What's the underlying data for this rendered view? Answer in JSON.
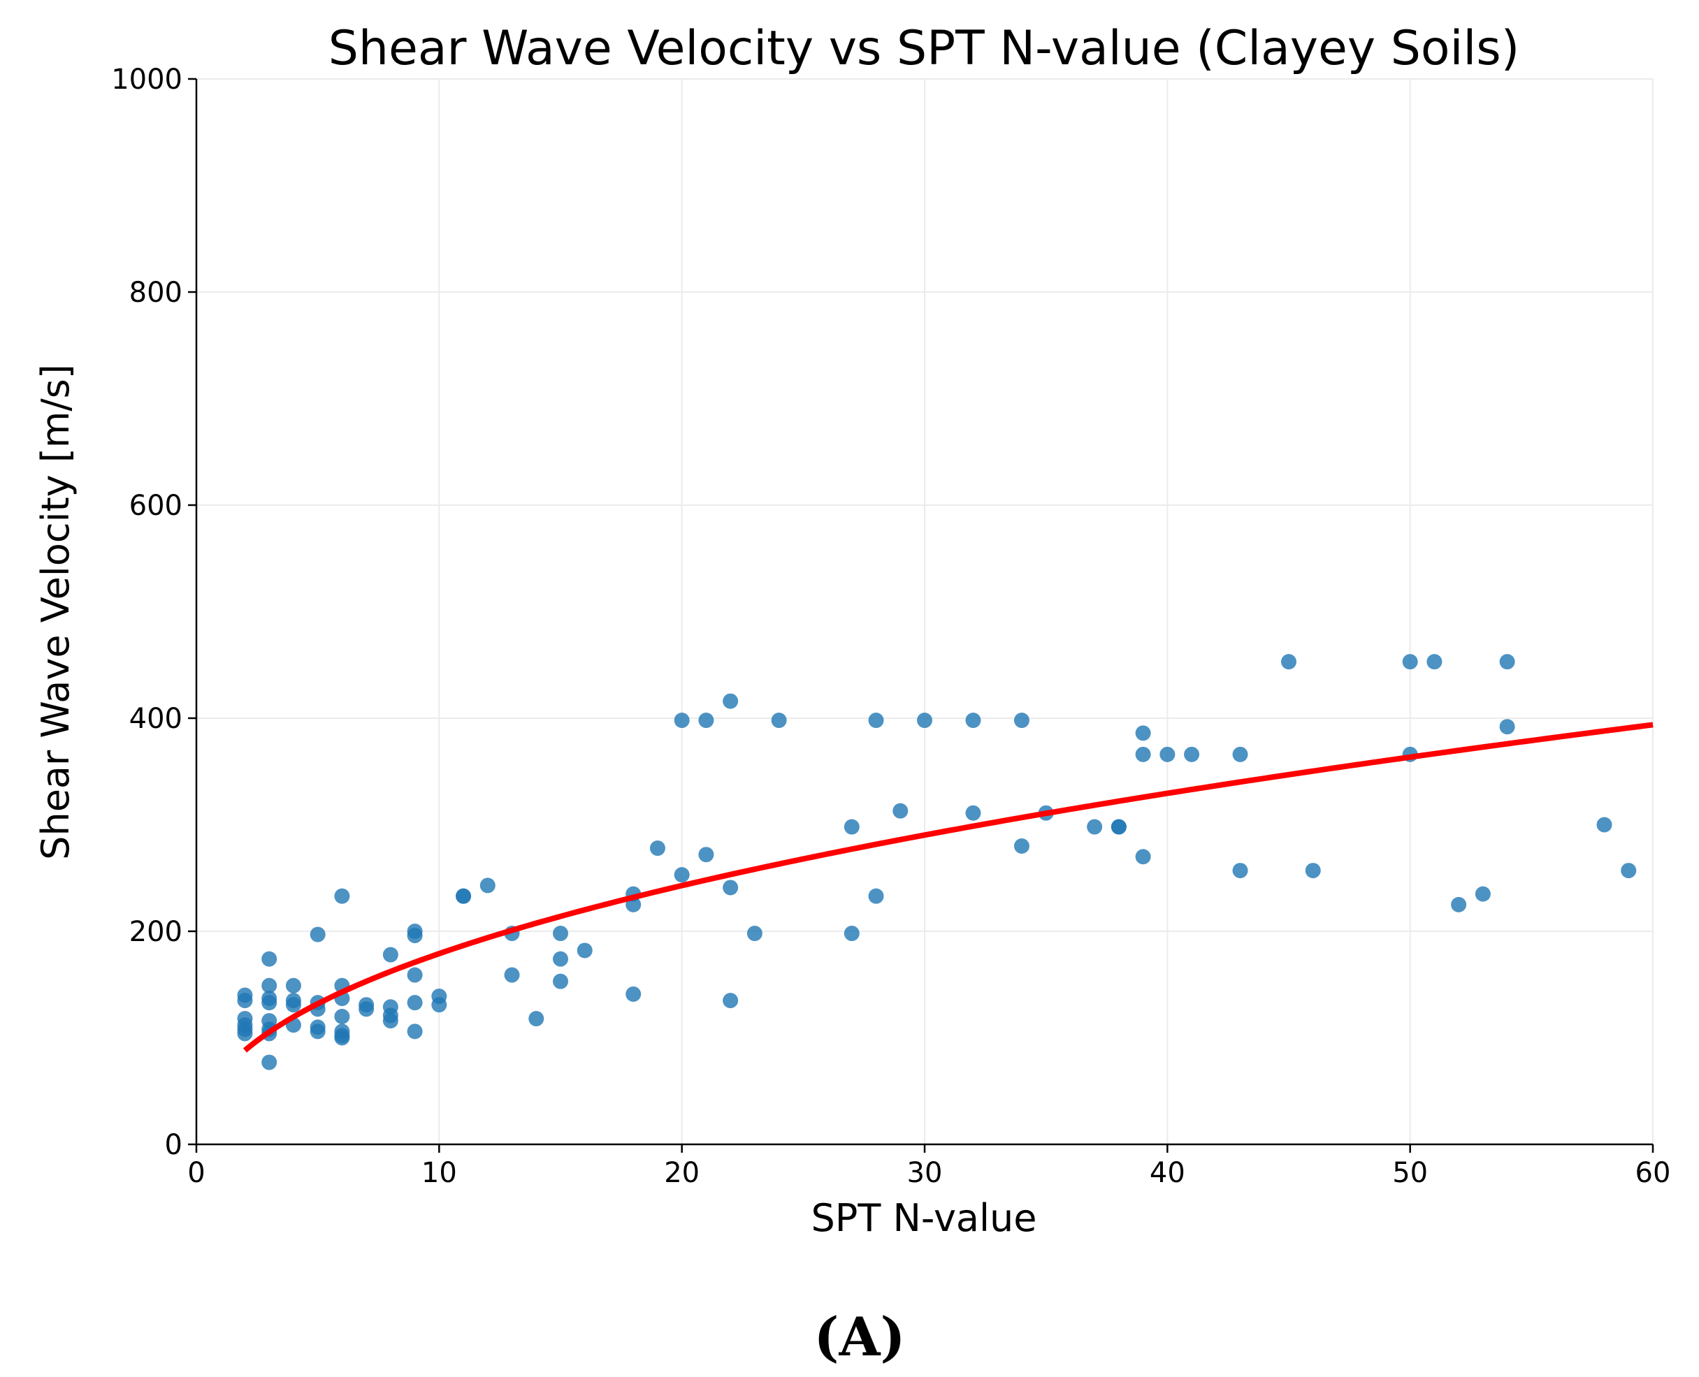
{
  "chart_data": {
    "type": "scatter",
    "title": "Shear Wave Velocity vs SPT N-value (Clayey Soils)",
    "xlabel": "SPT N-value",
    "ylabel": "Shear Wave Velocity [m/s]",
    "xlim": [
      0,
      60
    ],
    "ylim": [
      0,
      1000
    ],
    "xticks": [
      "0",
      "10",
      "20",
      "30",
      "40",
      "50",
      "60"
    ],
    "yticks": [
      "0",
      "200",
      "400",
      "600",
      "800",
      "1000"
    ],
    "grid": true,
    "colors": {
      "points": "#1f77b4",
      "fit": "#ff0000",
      "grid": "#ebebeb"
    },
    "points": [
      [
        2,
        140
      ],
      [
        2,
        135
      ],
      [
        2,
        118
      ],
      [
        2,
        112
      ],
      [
        2,
        108
      ],
      [
        2,
        104
      ],
      [
        3,
        174
      ],
      [
        3,
        149
      ],
      [
        3,
        137
      ],
      [
        3,
        133
      ],
      [
        3,
        116
      ],
      [
        3,
        108
      ],
      [
        3,
        104
      ],
      [
        3,
        77
      ],
      [
        4,
        149
      ],
      [
        4,
        135
      ],
      [
        4,
        131
      ],
      [
        4,
        112
      ],
      [
        5,
        197
      ],
      [
        5,
        133
      ],
      [
        5,
        127
      ],
      [
        5,
        110
      ],
      [
        5,
        106
      ],
      [
        6,
        233
      ],
      [
        6,
        149
      ],
      [
        6,
        137
      ],
      [
        6,
        120
      ],
      [
        6,
        106
      ],
      [
        6,
        102
      ],
      [
        6,
        100
      ],
      [
        7,
        131
      ],
      [
        7,
        127
      ],
      [
        8,
        178
      ],
      [
        8,
        129
      ],
      [
        8,
        121
      ],
      [
        8,
        116
      ],
      [
        9,
        200
      ],
      [
        9,
        196
      ],
      [
        9,
        159
      ],
      [
        9,
        133
      ],
      [
        9,
        106
      ],
      [
        10,
        139
      ],
      [
        10,
        131
      ],
      [
        11,
        233
      ],
      [
        11,
        233
      ],
      [
        12,
        243
      ],
      [
        13,
        198
      ],
      [
        13,
        159
      ],
      [
        14,
        118
      ],
      [
        15,
        198
      ],
      [
        15,
        174
      ],
      [
        15,
        153
      ],
      [
        16,
        182
      ],
      [
        18,
        235
      ],
      [
        18,
        225
      ],
      [
        18,
        141
      ],
      [
        19,
        278
      ],
      [
        20,
        398
      ],
      [
        20,
        253
      ],
      [
        21,
        398
      ],
      [
        21,
        272
      ],
      [
        22,
        416
      ],
      [
        22,
        241
      ],
      [
        22,
        135
      ],
      [
        23,
        198
      ],
      [
        24,
        398
      ],
      [
        27,
        298
      ],
      [
        27,
        198
      ],
      [
        28,
        398
      ],
      [
        28,
        233
      ],
      [
        29,
        313
      ],
      [
        30,
        398
      ],
      [
        32,
        398
      ],
      [
        32,
        311
      ],
      [
        34,
        398
      ],
      [
        34,
        280
      ],
      [
        35,
        311
      ],
      [
        37,
        298
      ],
      [
        38,
        298
      ],
      [
        38,
        298
      ],
      [
        39,
        386
      ],
      [
        39,
        366
      ],
      [
        39,
        270
      ],
      [
        40,
        366
      ],
      [
        41,
        366
      ],
      [
        43,
        366
      ],
      [
        43,
        257
      ],
      [
        45,
        453
      ],
      [
        46,
        257
      ],
      [
        50,
        453
      ],
      [
        50,
        366
      ],
      [
        51,
        453
      ],
      [
        52,
        225
      ],
      [
        53,
        235
      ],
      [
        54,
        453
      ],
      [
        54,
        392
      ],
      [
        58,
        300
      ],
      [
        59,
        257
      ]
    ],
    "fit": {
      "a": 65,
      "b": 0.44,
      "x_range": [
        2,
        60
      ]
    }
  },
  "panel_label": "(A)"
}
